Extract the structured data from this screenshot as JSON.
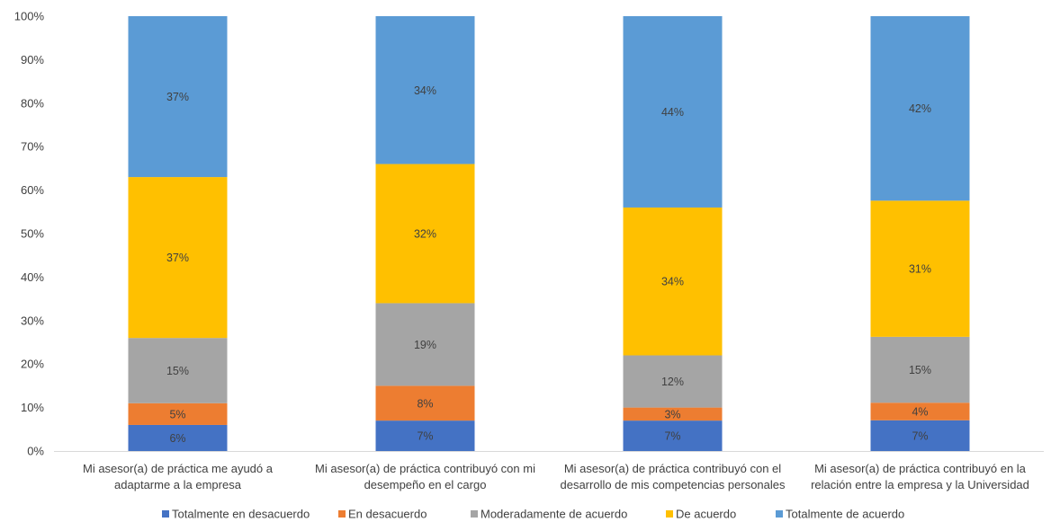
{
  "chart_data": {
    "type": "bar",
    "stacked": true,
    "percent_stacked": true,
    "title": "",
    "xlabel": "",
    "ylabel": "",
    "ylim": [
      0,
      100
    ],
    "y_ticks": [
      "0%",
      "10%",
      "20%",
      "30%",
      "40%",
      "50%",
      "60%",
      "70%",
      "80%",
      "90%",
      "100%"
    ],
    "grid": false,
    "legend_position": "bottom",
    "categories": [
      [
        "Mi asesor(a) de práctica me ayudó a",
        "adaptarme a la empresa"
      ],
      [
        "Mi asesor(a) de práctica contribuyó con mi",
        "desempeño en el cargo"
      ],
      [
        "Mi asesor(a) de práctica contribuyó con el",
        "desarrollo de mis competencias personales"
      ],
      [
        "Mi asesor(a) de práctica contribuyó en la",
        "relación entre la empresa y la Universidad"
      ]
    ],
    "series": [
      {
        "name": "Totalmente en desacuerdo",
        "color": "#4472C4",
        "values": [
          6,
          7,
          7,
          7
        ],
        "labels": [
          "6%",
          "7%",
          "7%",
          "7%"
        ],
        "label_color": "#404040"
      },
      {
        "name": "En desacuerdo",
        "color": "#ED7D31",
        "values": [
          5,
          8,
          3,
          4
        ],
        "labels": [
          "5%",
          "8%",
          "3%",
          "4%"
        ],
        "label_color": "#404040"
      },
      {
        "name": "Moderadamente de acuerdo",
        "color": "#A5A5A5",
        "values": [
          15,
          19,
          12,
          15
        ],
        "labels": [
          "15%",
          "19%",
          "12%",
          "15%"
        ],
        "label_color": "#404040"
      },
      {
        "name": "De acuerdo",
        "color": "#FFC000",
        "values": [
          37,
          32,
          34,
          31
        ],
        "labels": [
          "37%",
          "32%",
          "34%",
          "31%"
        ],
        "label_color": "#404040"
      },
      {
        "name": "Totalmente de acuerdo",
        "color": "#5B9BD5",
        "values": [
          37,
          34,
          44,
          42
        ],
        "labels": [
          "37%",
          "34%",
          "44%",
          "42%"
        ],
        "label_color": "#404040"
      }
    ]
  }
}
